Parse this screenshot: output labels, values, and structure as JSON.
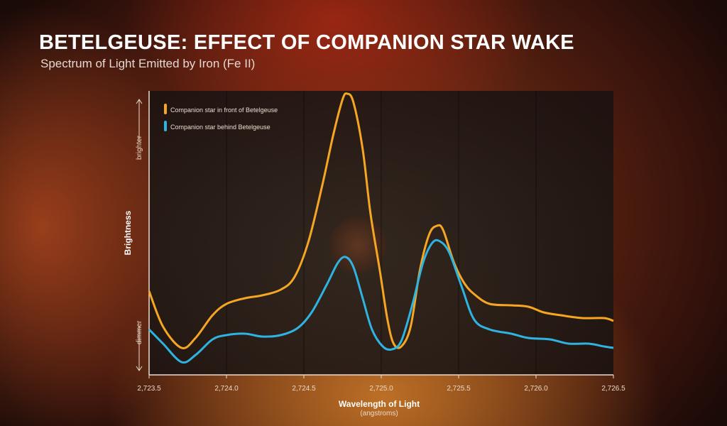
{
  "title": "BETELGEUSE: EFFECT OF COMPANION STAR WAKE",
  "subtitle": "Spectrum of Light Emitted by Iron (Fe II)",
  "chart_data": {
    "type": "line",
    "title": "BETELGEUSE: EFFECT OF COMPANION STAR WAKE",
    "subtitle": "Spectrum of Light Emitted by Iron (Fe II)",
    "xlabel": "Wavelength of Light",
    "xunit": "(angstroms)",
    "ylabel": "Brightness",
    "y_top_label": "brighter",
    "y_bottom_label": "dimmer",
    "xlim": [
      2723.5,
      2726.5
    ],
    "ylim": [
      0,
      1
    ],
    "y_scale_note": "relative brightness, unlabeled",
    "xticks": [
      "2,723.5",
      "2,724.0",
      "2,724.5",
      "2,725.0",
      "2,725.5",
      "2,726.0",
      "2,726.5"
    ],
    "xtick_values": [
      2723.5,
      2724.0,
      2724.5,
      2725.0,
      2725.5,
      2726.0,
      2726.5
    ],
    "grid": "vertical",
    "legend_position": "top-left",
    "series": [
      {
        "name": "Companion star in front of Betelgeuse",
        "color": "#f5a623",
        "x": [
          2723.5,
          2723.59,
          2723.71,
          2723.8,
          2723.91,
          2724.0,
          2724.12,
          2724.23,
          2724.35,
          2724.44,
          2724.53,
          2724.62,
          2724.69,
          2724.75,
          2724.78,
          2724.82,
          2724.88,
          2724.93,
          2724.99,
          2725.04,
          2725.08,
          2725.13,
          2725.19,
          2725.25,
          2725.31,
          2725.36,
          2725.4,
          2725.47,
          2725.54,
          2725.61,
          2725.7,
          2725.84,
          2725.95,
          2726.05,
          2726.16,
          2726.3,
          2726.44,
          2726.5
        ],
        "y": [
          0.295,
          0.17,
          0.095,
          0.13,
          0.21,
          0.25,
          0.27,
          0.28,
          0.3,
          0.345,
          0.47,
          0.67,
          0.845,
          0.97,
          0.99,
          0.96,
          0.795,
          0.57,
          0.37,
          0.195,
          0.11,
          0.1,
          0.17,
          0.37,
          0.495,
          0.525,
          0.51,
          0.395,
          0.32,
          0.28,
          0.25,
          0.245,
          0.24,
          0.22,
          0.21,
          0.2,
          0.2,
          0.19
        ]
      },
      {
        "name": "Companion star behind Betelgeuse",
        "color": "#2fb3e0",
        "x": [
          2723.5,
          2723.59,
          2723.71,
          2723.8,
          2723.91,
          2724.0,
          2724.12,
          2724.23,
          2724.35,
          2724.46,
          2724.55,
          2724.65,
          2724.72,
          2724.77,
          2724.82,
          2724.88,
          2724.94,
          2725.01,
          2725.07,
          2725.13,
          2725.2,
          2725.27,
          2725.33,
          2725.38,
          2725.44,
          2725.52,
          2725.6,
          2725.7,
          2725.84,
          2725.95,
          2726.09,
          2726.21,
          2726.34,
          2726.44,
          2726.5
        ],
        "y": [
          0.16,
          0.11,
          0.045,
          0.07,
          0.125,
          0.14,
          0.145,
          0.135,
          0.14,
          0.165,
          0.22,
          0.32,
          0.395,
          0.415,
          0.38,
          0.27,
          0.16,
          0.1,
          0.09,
          0.12,
          0.245,
          0.395,
          0.465,
          0.47,
          0.43,
          0.31,
          0.195,
          0.16,
          0.145,
          0.13,
          0.125,
          0.11,
          0.11,
          0.1,
          0.095
        ]
      }
    ]
  }
}
